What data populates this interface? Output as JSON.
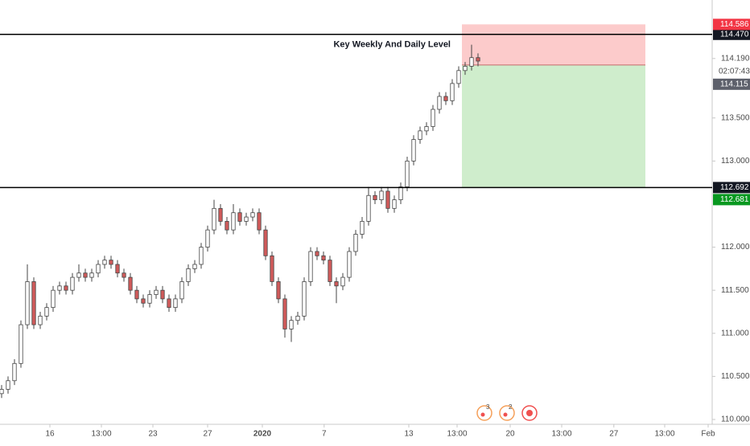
{
  "chart_data": {
    "type": "candlestick",
    "x": [
      0,
      1,
      2,
      3,
      4,
      5,
      6,
      7,
      8,
      9,
      10,
      11,
      12,
      13,
      14,
      15,
      16,
      17,
      18,
      19,
      20,
      21,
      22,
      23,
      24,
      25,
      26,
      27,
      28,
      29,
      30,
      31,
      32,
      33,
      34,
      35,
      36,
      37,
      38,
      39,
      40,
      41,
      42,
      43,
      44,
      45,
      46,
      47,
      48,
      49,
      50,
      51,
      52,
      53,
      54,
      55,
      56,
      57,
      58,
      59,
      60,
      61,
      62,
      63,
      64,
      65,
      66,
      67,
      68,
      69,
      70,
      71,
      72,
      73,
      74
    ],
    "open": [
      110.3,
      110.35,
      110.45,
      110.65,
      111.1,
      111.6,
      111.1,
      111.2,
      111.3,
      111.5,
      111.55,
      111.5,
      111.65,
      111.7,
      111.65,
      111.7,
      111.8,
      111.85,
      111.8,
      111.7,
      111.65,
      111.5,
      111.4,
      111.35,
      111.45,
      111.5,
      111.4,
      111.3,
      111.4,
      111.6,
      111.75,
      111.8,
      112.0,
      112.2,
      112.45,
      112.3,
      112.2,
      112.4,
      112.3,
      112.35,
      112.4,
      112.2,
      111.9,
      111.6,
      111.4,
      111.05,
      111.15,
      111.2,
      111.6,
      111.95,
      111.9,
      111.85,
      111.6,
      111.55,
      111.65,
      111.95,
      112.15,
      112.3,
      112.6,
      112.55,
      112.65,
      112.45,
      112.55,
      112.7,
      113.0,
      113.25,
      113.35,
      113.4,
      113.6,
      113.75,
      113.7,
      113.9,
      114.05,
      114.1,
      114.2
    ],
    "high": [
      110.4,
      110.5,
      110.7,
      111.15,
      111.8,
      111.65,
      111.25,
      111.35,
      111.55,
      111.6,
      111.6,
      111.7,
      111.8,
      111.75,
      111.75,
      111.85,
      111.9,
      111.9,
      111.85,
      111.75,
      111.7,
      111.55,
      111.45,
      111.5,
      111.55,
      111.55,
      111.45,
      111.45,
      111.65,
      111.8,
      111.85,
      112.05,
      112.25,
      112.55,
      112.5,
      112.35,
      112.5,
      112.45,
      112.4,
      112.45,
      112.45,
      112.25,
      111.95,
      111.65,
      111.45,
      111.2,
      111.25,
      111.65,
      112.0,
      112.0,
      111.95,
      111.9,
      111.65,
      111.7,
      112.0,
      112.2,
      112.35,
      112.7,
      112.65,
      112.7,
      112.7,
      112.6,
      112.75,
      113.05,
      113.3,
      113.4,
      113.45,
      113.65,
      113.8,
      113.8,
      113.95,
      114.1,
      114.15,
      114.35,
      114.25
    ],
    "low": [
      110.25,
      110.3,
      110.4,
      110.6,
      111.05,
      111.05,
      111.05,
      111.15,
      111.25,
      111.45,
      111.45,
      111.45,
      111.6,
      111.6,
      111.6,
      111.65,
      111.75,
      111.75,
      111.65,
      111.6,
      111.45,
      111.35,
      111.3,
      111.3,
      111.4,
      111.35,
      111.25,
      111.25,
      111.35,
      111.55,
      111.7,
      111.75,
      111.95,
      112.15,
      112.25,
      112.15,
      112.15,
      112.25,
      112.25,
      112.3,
      112.15,
      111.85,
      111.55,
      111.35,
      110.95,
      110.9,
      111.1,
      111.15,
      111.55,
      111.85,
      111.8,
      111.55,
      111.35,
      111.5,
      111.6,
      111.9,
      112.1,
      112.25,
      112.5,
      112.5,
      112.4,
      112.4,
      112.5,
      112.65,
      112.95,
      113.2,
      113.3,
      113.35,
      113.55,
      113.65,
      113.65,
      113.85,
      114.0,
      114.05,
      114.1
    ],
    "close": [
      110.35,
      110.45,
      110.65,
      111.1,
      111.6,
      111.1,
      111.2,
      111.3,
      111.5,
      111.55,
      111.5,
      111.65,
      111.7,
      111.65,
      111.7,
      111.8,
      111.85,
      111.8,
      111.7,
      111.65,
      111.5,
      111.4,
      111.35,
      111.45,
      111.5,
      111.4,
      111.3,
      111.4,
      111.6,
      111.75,
      111.8,
      112.0,
      112.2,
      112.45,
      112.3,
      112.2,
      112.4,
      112.3,
      112.35,
      112.4,
      112.2,
      111.9,
      111.6,
      111.4,
      111.05,
      111.15,
      111.2,
      111.6,
      111.95,
      111.9,
      111.85,
      111.6,
      111.55,
      111.65,
      111.95,
      112.15,
      112.3,
      112.6,
      112.55,
      112.65,
      112.45,
      112.55,
      112.7,
      113.0,
      113.25,
      113.35,
      113.4,
      113.6,
      113.75,
      113.7,
      113.9,
      114.05,
      114.1,
      114.2,
      114.16
    ],
    "up_color": "#ffffff",
    "down_color": "#d05a5a",
    "xlim": [
      -0.25,
      110.375
    ],
    "xticks": [
      {
        "value": 7.5,
        "label": "16"
      },
      {
        "value": 15.5,
        "label": "13:00"
      },
      {
        "value": 23.5,
        "label": "23"
      },
      {
        "value": 32,
        "label": "27"
      },
      {
        "value": 40.5,
        "label": "2020"
      },
      {
        "value": 50.1,
        "label": "7"
      },
      {
        "value": 63.25,
        "label": "13"
      },
      {
        "value": 70.75,
        "label": "13:00"
      },
      {
        "value": 79,
        "label": "20"
      },
      {
        "value": 87,
        "label": "13:00"
      },
      {
        "value": 95.1,
        "label": "27"
      },
      {
        "value": 103,
        "label": "13:00"
      },
      {
        "value": 109.75,
        "label": "Feb"
      }
    ],
    "ylim": [
      109.944,
      114.869
    ],
    "yticks": [
      {
        "value": 110,
        "label": "110.000"
      },
      {
        "value": 110.5,
        "label": "110.500"
      },
      {
        "value": 111,
        "label": "111.000"
      },
      {
        "value": 111.5,
        "label": "111.500"
      },
      {
        "value": 112,
        "label": "112.000"
      },
      {
        "value": 113,
        "label": "113.000"
      },
      {
        "value": 113.5,
        "label": "113.500"
      },
      {
        "value": 114.19,
        "label": "114.190"
      }
    ],
    "levels": [
      {
        "value": 114.47,
        "label": "114.470"
      },
      {
        "value": 112.692,
        "label": "112.692"
      }
    ],
    "annotation": "Key Weekly And Daily Level",
    "position": {
      "x_start": 71.5,
      "x_end": 100,
      "stop": 114.586,
      "stop_label": "114.586",
      "entry": 114.115,
      "entry_label": "114.115",
      "target": 112.692,
      "countdown": "02:07:43"
    },
    "badges": [
      {
        "value": 112.681,
        "label": "112.681",
        "color": "#089820"
      }
    ],
    "events": [
      {
        "x": 75,
        "label": "3"
      },
      {
        "x": 78.5,
        "label": "2"
      }
    ]
  }
}
